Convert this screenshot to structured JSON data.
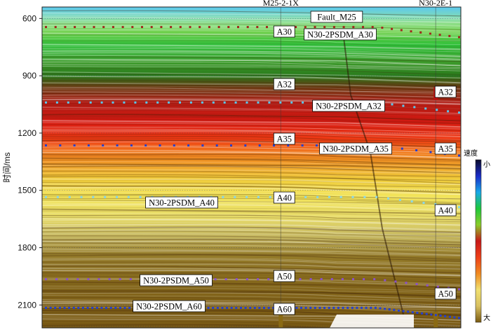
{
  "chart_data": {
    "type": "heatmap",
    "ylabel": "时间/ms",
    "y_ticks": [
      600,
      900,
      1200,
      1500,
      1800,
      2100
    ],
    "ylim": [
      540,
      2220
    ],
    "y_reversed": true,
    "wells": [
      {
        "name": "M25-2-1X",
        "trace": 0.57
      },
      {
        "name": "N30-2E-1",
        "trace": 0.94
      }
    ],
    "fault_label": "Fault_M25",
    "horizons": [
      {
        "name": "A30",
        "time": 645
      },
      {
        "name": "A32",
        "time": 975
      },
      {
        "name": "A35",
        "time": 1265
      },
      {
        "name": "A40",
        "time": 1570
      },
      {
        "name": "A50",
        "time": 1980
      },
      {
        "name": "A60",
        "time": 2120
      }
    ],
    "psdm_labels": [
      "N30-2PSDM_A30",
      "N30-2PSDM_A32",
      "N30-2PSDM_A35",
      "N30-2PSDM_A40",
      "N30-2PSDM_A50",
      "N30-2PSDM_A60"
    ],
    "well_tops_left": [
      "A30",
      "A32",
      "A35",
      "A40",
      "A50",
      "A60"
    ],
    "well_tops_right": [
      "A32",
      "A35",
      "A40",
      "A50"
    ],
    "colorbar": {
      "title": "速度",
      "low_label": "小",
      "high_label": "大",
      "colors": [
        "#0a0a2a",
        "#1a2cc8",
        "#18a8e8",
        "#1ec83c",
        "#8acc2a",
        "#c81818",
        "#ee4018",
        "#f08a20",
        "#f0e070",
        "#d8c060",
        "#7a5a10"
      ]
    },
    "velocity_profile": [
      {
        "t": 540,
        "c": "#5cc8ee"
      },
      {
        "t": 585,
        "c": "#7ad8c0"
      },
      {
        "t": 625,
        "c": "#8edf8a"
      },
      {
        "t": 670,
        "c": "#6ed04a"
      },
      {
        "t": 740,
        "c": "#2fbf3a"
      },
      {
        "t": 830,
        "c": "#3c9a2a"
      },
      {
        "t": 900,
        "c": "#2a7a1c"
      },
      {
        "t": 960,
        "c": "#6a3a12"
      },
      {
        "t": 1040,
        "c": "#b01c14"
      },
      {
        "t": 1140,
        "c": "#d61a12"
      },
      {
        "t": 1230,
        "c": "#ee3a14"
      },
      {
        "t": 1300,
        "c": "#f07a1c"
      },
      {
        "t": 1370,
        "c": "#f0a22a"
      },
      {
        "t": 1440,
        "c": "#f0cc3a"
      },
      {
        "t": 1530,
        "c": "#f2e45a"
      },
      {
        "t": 1640,
        "c": "#e8dc6a"
      },
      {
        "t": 1740,
        "c": "#c6b860"
      },
      {
        "t": 1840,
        "c": "#957c2a"
      },
      {
        "t": 1980,
        "c": "#85681c"
      },
      {
        "t": 2220,
        "c": "#7a5a14"
      }
    ]
  }
}
